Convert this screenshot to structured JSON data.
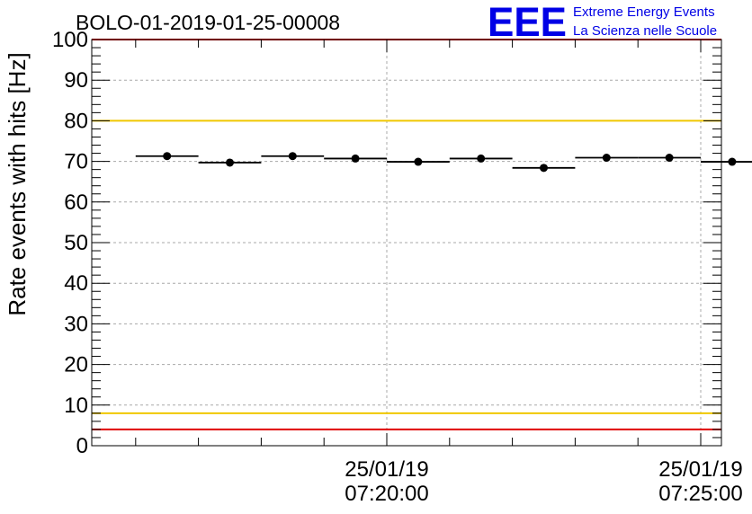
{
  "chart_data": {
    "type": "scatter",
    "title": "BOLO-01-2019-01-25-00008",
    "xlabel": "",
    "ylabel": "Rate events with hits [Hz]",
    "ylim": [
      0,
      100
    ],
    "y_ticks": [
      "0",
      "10",
      "20",
      "30",
      "40",
      "50",
      "60",
      "70",
      "80",
      "90",
      "100"
    ],
    "x_ticks": [
      {
        "date": "25/01/19",
        "time": "07:20:00"
      },
      {
        "date": "25/01/19",
        "time": "07:25:00"
      }
    ],
    "grid": true,
    "series": [
      {
        "x": [
          "07:16:30",
          "07:17:30",
          "07:18:30",
          "07:19:30",
          "07:20:30",
          "07:21:30",
          "07:22:30",
          "07:23:30",
          "07:24:30",
          "07:25:30"
        ],
        "x_halfwidth_seconds": 30,
        "values": [
          71.3,
          69.7,
          71.3,
          70.7,
          69.9,
          70.7,
          68.4,
          70.9,
          70.9,
          69.9
        ],
        "color": "#000000"
      }
    ],
    "reference_lines": [
      {
        "y": 80,
        "color": "#f0c800"
      },
      {
        "y": 8,
        "color": "#f0c800"
      },
      {
        "y": 100,
        "color": "#e00000"
      },
      {
        "y": 4,
        "color": "#e00000"
      }
    ]
  },
  "logo": {
    "letters": "EEE",
    "line1": "Extreme Energy Events",
    "line2": "La Scienza nelle Scuole",
    "color": "#0000e6"
  }
}
